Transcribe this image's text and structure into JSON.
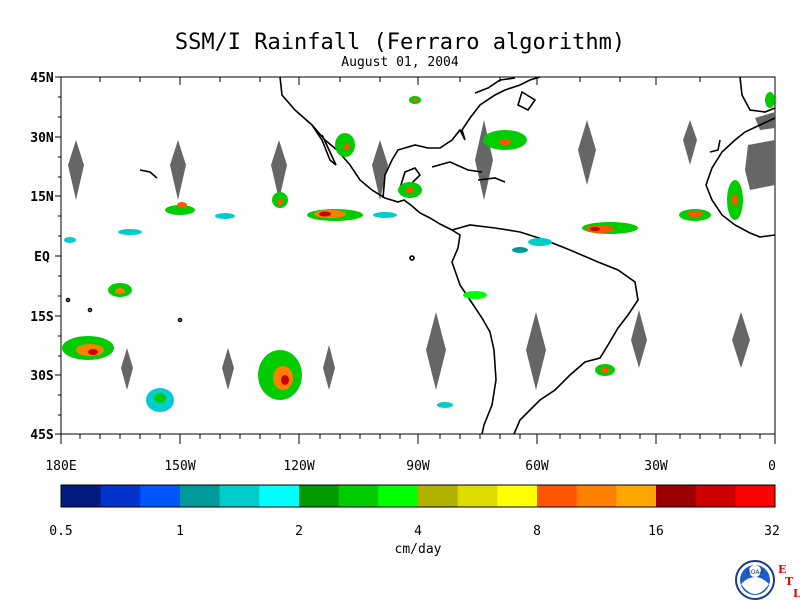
{
  "title": "SSM/I Rainfall (Ferraro algorithm)",
  "subtitle": "August 01, 2004",
  "map": {
    "lat_labels": [
      "45N",
      "30N",
      "15N",
      "EQ",
      "15S",
      "30S",
      "45S"
    ],
    "lon_labels": [
      "180E",
      "150W",
      "120W",
      "90W",
      "60W",
      "30W",
      "0"
    ],
    "lat_range": [
      -45,
      45
    ],
    "lon_range": [
      -180,
      0
    ],
    "no_data_color": "#666666",
    "coastline_color": "#000000"
  },
  "colorbar": {
    "unit_label": "cm/day",
    "tick_labels": [
      "0.5",
      "1",
      "2",
      "4",
      "8",
      "16",
      "32"
    ],
    "colors": [
      "#001a80",
      "#0033cc",
      "#0055ff",
      "#009999",
      "#00cccc",
      "#00ffff",
      "#009900",
      "#00cc00",
      "#00ff00",
      "#b2b200",
      "#dddd00",
      "#ffff00",
      "#ff5500",
      "#ff8000",
      "#ffa500",
      "#990000",
      "#cc0000",
      "#ff0000"
    ]
  },
  "logo": {
    "text": "NOAA",
    "letters": [
      "E",
      "T",
      "L"
    ]
  }
}
